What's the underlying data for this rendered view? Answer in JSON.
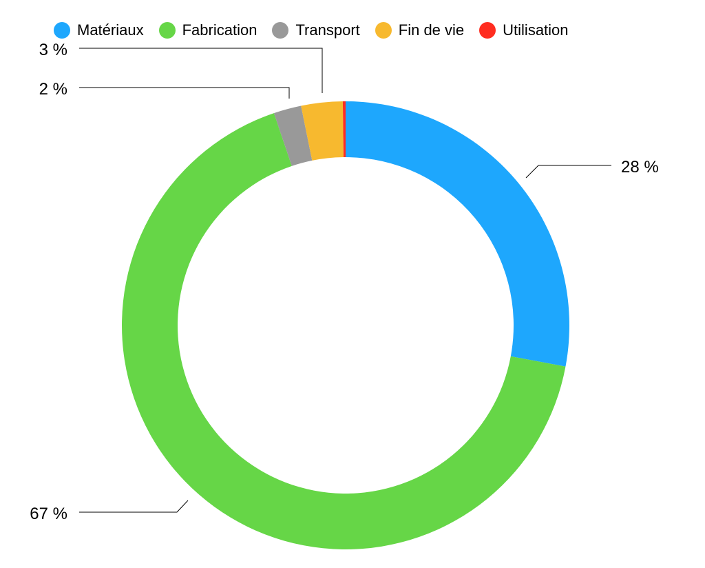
{
  "chart_data": {
    "type": "pie",
    "donut": true,
    "legend_position": "top",
    "series": [
      {
        "name": "Matériaux",
        "value": 28,
        "label": "28 %",
        "color": "#1ea7fd"
      },
      {
        "name": "Fabrication",
        "value": 67,
        "label": "67 %",
        "color": "#66d647"
      },
      {
        "name": "Transport",
        "value": 2,
        "label": "2 %",
        "color": "#999999"
      },
      {
        "name": "Fin de vie",
        "value": 3,
        "label": "3 %",
        "color": "#f7b92f"
      },
      {
        "name": "Utilisation",
        "value": 0.2,
        "label": "",
        "color": "#ff2d20"
      }
    ]
  }
}
